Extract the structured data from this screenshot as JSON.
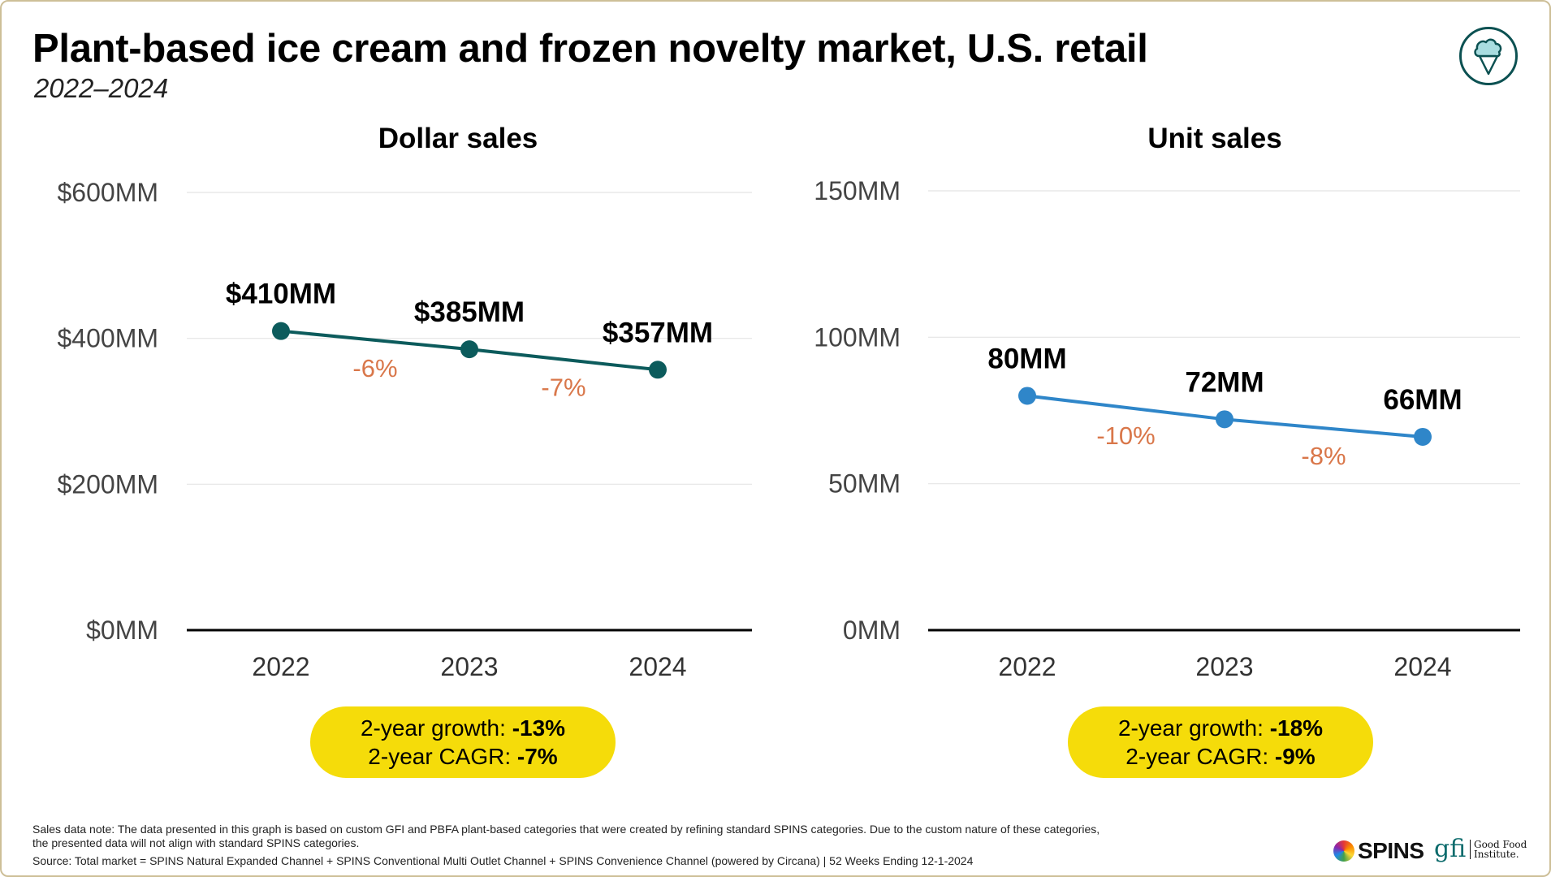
{
  "title": "Plant-based ice cream and frozen novelty market, U.S. retail",
  "subtitle": "2022–2024",
  "icon": "ice-cream-cone-icon",
  "colors": {
    "dollar_line": "#0c5b5c",
    "unit_line": "#2f86c9",
    "change_label": "#d9774a",
    "pill": "#f5dc0a"
  },
  "chart_data": [
    {
      "type": "line",
      "title": "Dollar sales",
      "categories": [
        "2022",
        "2023",
        "2024"
      ],
      "values": [
        410,
        385,
        357
      ],
      "value_labels": [
        "$410MM",
        "$385MM",
        "$357MM"
      ],
      "change_labels": [
        "-6%",
        "-7%"
      ],
      "yticks": [
        "$0MM",
        "$200MM",
        "$400MM",
        "$600MM"
      ],
      "ytick_values": [
        0,
        200,
        400,
        600
      ],
      "ylim": [
        0,
        600
      ],
      "grid": true,
      "summary": {
        "growth_label": "2-year growth:",
        "growth_value": "-13%",
        "cagr_label": "2-year CAGR:",
        "cagr_value": "-7%"
      }
    },
    {
      "type": "line",
      "title": "Unit sales",
      "categories": [
        "2022",
        "2023",
        "2024"
      ],
      "values": [
        80,
        72,
        66
      ],
      "value_labels": [
        "80MM",
        "72MM",
        "66MM"
      ],
      "change_labels": [
        "-10%",
        "-8%"
      ],
      "yticks": [
        "0MM",
        "50MM",
        "100MM",
        "150MM"
      ],
      "ytick_values": [
        0,
        50,
        100,
        150
      ],
      "ylim": [
        0,
        150
      ],
      "grid": true,
      "summary": {
        "growth_label": "2-year growth:",
        "growth_value": "-18%",
        "cagr_label": "2-year CAGR:",
        "cagr_value": "-9%"
      }
    }
  ],
  "footer": {
    "note_line1": "Sales data note: The data presented in this graph is based on custom GFI and PBFA plant-based categories that were created by refining standard SPINS categories. Due to the custom nature of these categories,",
    "note_line2": "the presented data will not align with standard SPINS categories.",
    "source": "Source: Total market = SPINS Natural Expanded Channel + SPINS Conventional Multi Outlet Channel + SPINS Convenience Channel (powered by Circana) | 52 Weeks Ending 12-1-2024"
  },
  "logos": {
    "spins": "SPINS",
    "gfi_mark": "gfi",
    "gfi_name_1": "Good Food",
    "gfi_name_2": "Institute."
  }
}
